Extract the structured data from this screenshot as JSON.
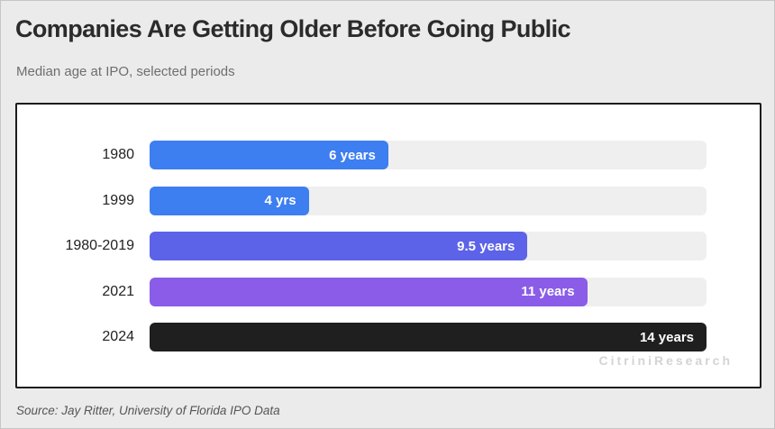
{
  "header": {
    "title": "Companies Are Getting Older Before Going Public",
    "subtitle": "Median age at IPO, selected periods"
  },
  "chart_data": {
    "type": "bar",
    "orientation": "horizontal",
    "title": "Companies Are Getting Older Before Going Public",
    "subtitle": "Median age at IPO, selected periods",
    "categories": [
      "1980",
      "1999",
      "1980-2019",
      "2021",
      "2024"
    ],
    "values": [
      6,
      4,
      9.5,
      11,
      14
    ],
    "value_labels": [
      "6 years",
      "4 yrs",
      "9.5 years",
      "11 years",
      "14 years"
    ],
    "bar_colors": [
      "#3d7ef0",
      "#3d7ef0",
      "#5c63e8",
      "#8a5ce8",
      "#1f1f1f"
    ],
    "xlim": [
      0,
      14
    ],
    "xlabel": "",
    "ylabel": "",
    "grid": false,
    "legend": false,
    "track_color": "#efefef"
  },
  "watermark": "CitriniResearch",
  "footer": {
    "source": "Source: Jay Ritter, University of Florida IPO Data"
  }
}
